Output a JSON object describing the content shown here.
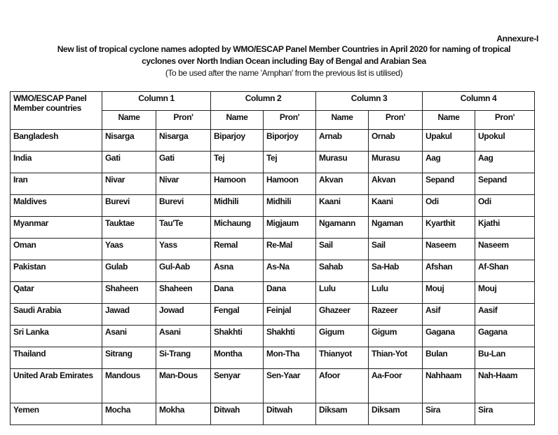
{
  "document": {
    "annexure": "Annexure-I",
    "title_line1": "New list of tropical cyclone names adopted by WMO/ESCAP Panel Member Countries in April 2020 for naming of tropical",
    "title_line2": "cyclones over North Indian Ocean including Bay of Bengal and Arabian Sea",
    "subtitle": "(To be used after the name 'Amphan' from the previous list is utilised)"
  },
  "table": {
    "corner_header_line1": "WMO/ESCAP Panel",
    "corner_header_line2": "Member countries",
    "groups": [
      "Column 1",
      "Column 2",
      "Column 3",
      "Column 4"
    ],
    "subheaders": [
      "Name",
      "Pron'"
    ],
    "rows": [
      {
        "country": "Bangladesh",
        "cells": [
          "Nisarga",
          "Nisarga",
          "Biparjoy",
          "Biporjoy",
          "Arnab",
          "Ornab",
          "Upakul",
          "Upokul"
        ]
      },
      {
        "country": "India",
        "cells": [
          "Gati",
          "Gati",
          "Tej",
          "Tej",
          "Murasu",
          "Murasu",
          "Aag",
          "Aag"
        ]
      },
      {
        "country": "Iran",
        "cells": [
          "Nivar",
          "Nivar",
          "Hamoon",
          "Hamoon",
          "Akvan",
          "Akvan",
          "Sepand",
          "Sepand"
        ]
      },
      {
        "country": "Maldives",
        "cells": [
          "Burevi",
          "Burevi",
          "Midhili",
          "Midhili",
          "Kaani",
          "Kaani",
          "Odi",
          "Odi"
        ]
      },
      {
        "country": "Myanmar",
        "cells": [
          "Tauktae",
          "Tau'Te",
          "Michaung",
          "Migjaum",
          "Ngamann",
          "Ngaman",
          "Kyarthit",
          "Kjathi"
        ]
      },
      {
        "country": "Oman",
        "cells": [
          "Yaas",
          "Yass",
          "Remal",
          "Re-Mal",
          "Sail",
          "Sail",
          "Naseem",
          "Naseem"
        ]
      },
      {
        "country": "Pakistan",
        "cells": [
          "Gulab",
          "Gul-Aab",
          "Asna",
          "As-Na",
          "Sahab",
          "Sa-Hab",
          "Afshan",
          "Af-Shan"
        ]
      },
      {
        "country": "Qatar",
        "cells": [
          "Shaheen",
          "Shaheen",
          "Dana",
          "Dana",
          "Lulu",
          "Lulu",
          "Mouj",
          "Mouj"
        ]
      },
      {
        "country": "Saudi Arabia",
        "cells": [
          "Jawad",
          "Jowad",
          "Fengal",
          "Feinjal",
          "Ghazeer",
          "Razeer",
          "Asif",
          "Aasif"
        ]
      },
      {
        "country": "Sri Lanka",
        "cells": [
          "Asani",
          "Asani",
          "Shakhti",
          "Shakhti",
          "Gigum",
          "Gigum",
          "Gagana",
          "Gagana"
        ]
      },
      {
        "country": "Thailand",
        "cells": [
          "Sitrang",
          "Si-Trang",
          "Montha",
          "Mon-Tha",
          "Thianyot",
          "Thian-Yot",
          "Bulan",
          "Bu-Lan"
        ]
      },
      {
        "country": "United Arab Emirates",
        "cells": [
          "Mandous",
          "Man-Dous",
          "Senyar",
          "Sen-Yaar",
          "Afoor",
          "Aa-Foor",
          "Nahhaam",
          "Nah-Haam"
        ]
      },
      {
        "country": "Yemen",
        "cells": [
          "Mocha",
          "Mokha",
          "Ditwah",
          "Ditwah",
          "Diksam",
          "Diksam",
          "Sira",
          "Sira"
        ]
      }
    ]
  }
}
